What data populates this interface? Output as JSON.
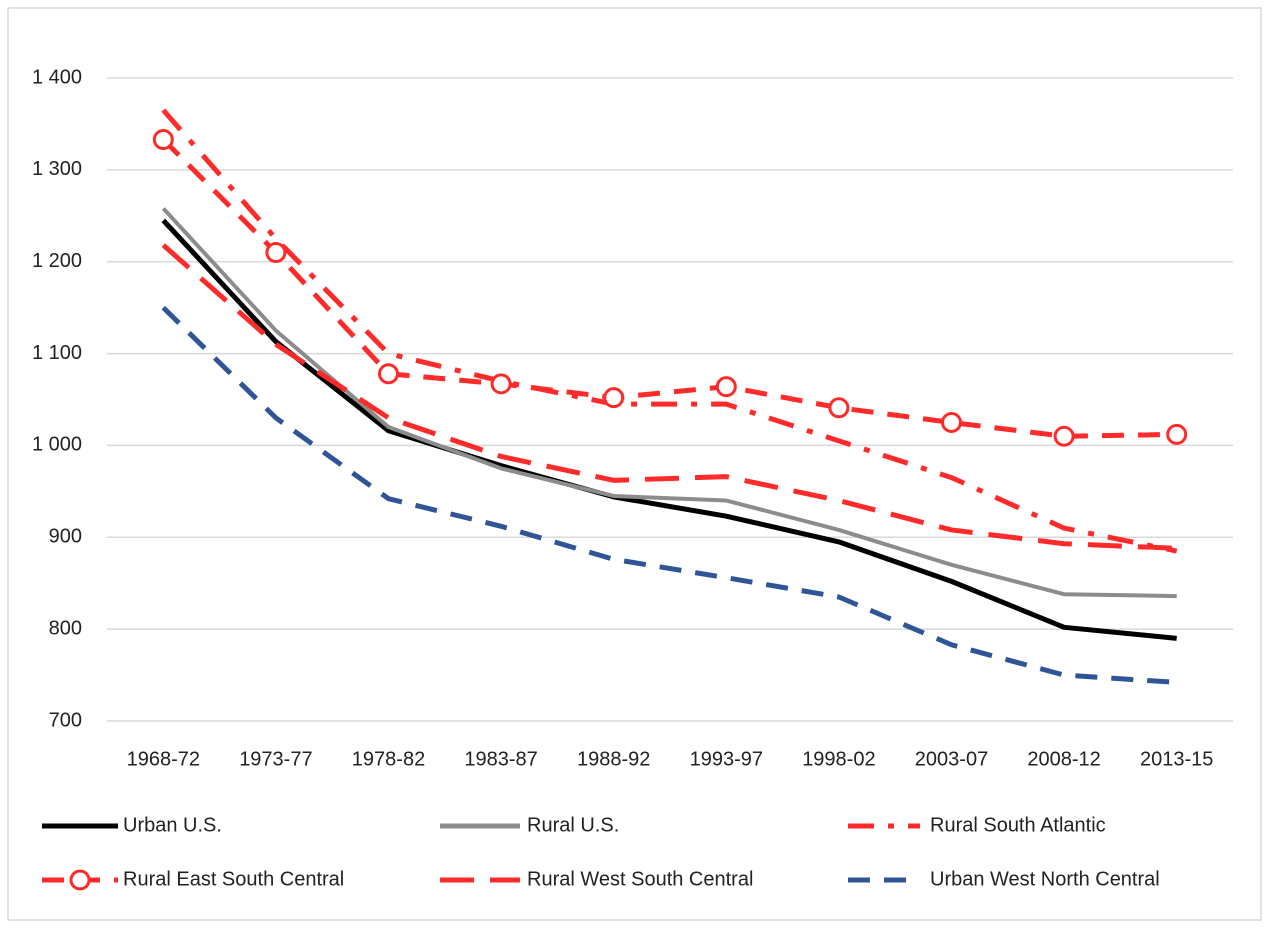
{
  "chart_data": {
    "type": "line",
    "categories": [
      "1968-72",
      "1973-77",
      "1978-82",
      "1983-87",
      "1988-92",
      "1993-97",
      "1998-02",
      "2003-07",
      "2008-12",
      "2013-15"
    ],
    "series": [
      {
        "name": "Urban U.S.",
        "color": "#000000",
        "dash": "solid",
        "values": [
          1245,
          1113,
          1016,
          978,
          944,
          923,
          895,
          852,
          802,
          790
        ]
      },
      {
        "name": "Rural U.S.",
        "color": "#8c8c8c",
        "dash": "solid",
        "values": [
          1258,
          1125,
          1020,
          975,
          945,
          940,
          908,
          870,
          838,
          836
        ]
      },
      {
        "name": "Rural South Atlantic",
        "color": "#ff2a2a",
        "dash": "dash-dot",
        "values": [
          1365,
          1225,
          1100,
          1070,
          1045,
          1045,
          1005,
          965,
          910,
          885
        ]
      },
      {
        "name": "Rural East South Central",
        "color": "#ff2a2a",
        "dash": "dash",
        "marker": "circle",
        "values": [
          1333,
          1210,
          1078,
          1067,
          1052,
          1064,
          1041,
          1025,
          1010,
          1012
        ]
      },
      {
        "name": "Rural West South Central",
        "color": "#ff2a2a",
        "dash": "long-dash",
        "values": [
          1218,
          1110,
          1030,
          988,
          962,
          966,
          940,
          908,
          893,
          888
        ]
      },
      {
        "name": "Urban West North Central",
        "color": "#2f5597",
        "dash": "dash",
        "values": [
          1150,
          1030,
          942,
          912,
          876,
          856,
          835,
          783,
          750,
          742
        ]
      }
    ],
    "ylim": [
      700,
      1400
    ],
    "yticks": [
      700,
      800,
      900,
      {
        "value": 1000,
        "label": "1 000"
      },
      {
        "value": 1100,
        "label": "1 100"
      },
      {
        "value": 1200,
        "label": "1 200"
      },
      {
        "value": 1300,
        "label": "1 300"
      },
      {
        "value": 1400,
        "label": "1 400"
      }
    ],
    "grid": true,
    "legend": "bottom"
  }
}
